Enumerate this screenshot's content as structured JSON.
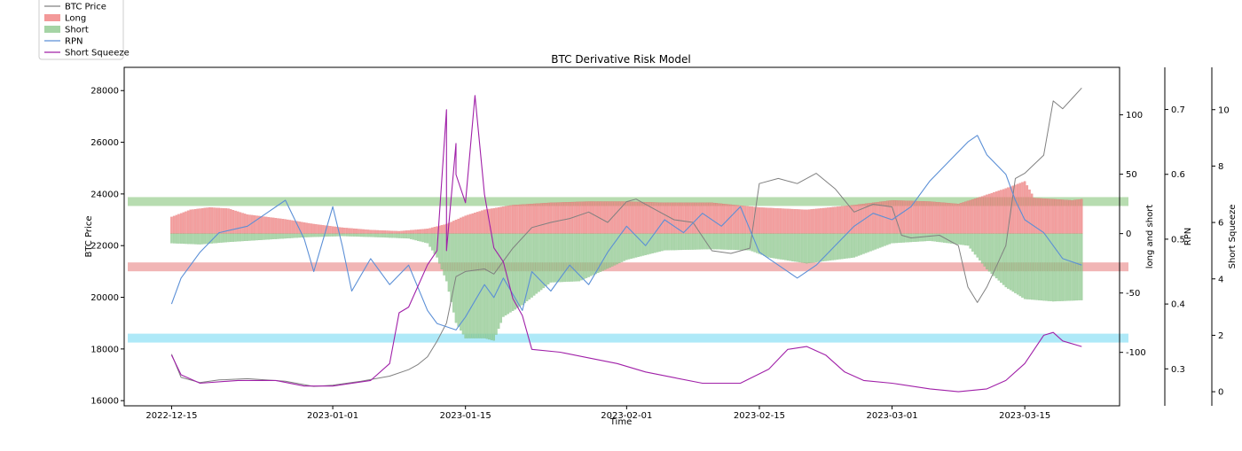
{
  "chart_data": {
    "type": "line",
    "title": "BTC Derivative Risk Model",
    "xlabel": "Time",
    "ylabel": "BTC Price",
    "x_ticks": [
      "2022-12-15",
      "2023-01-01",
      "2023-01-15",
      "2023-02-01",
      "2023-02-15",
      "2023-03-01",
      "2023-03-15"
    ],
    "x_range": [
      "2022-12-10",
      "2023-03-25"
    ],
    "legend": {
      "placement": "top-left, outside",
      "entries": [
        {
          "label": "BTC Price",
          "kind": "line",
          "color": "#808080"
        },
        {
          "label": "Long",
          "kind": "patch",
          "color": "#f08080"
        },
        {
          "label": "Short",
          "kind": "patch",
          "color": "#8fc98f"
        },
        {
          "label": "RPN",
          "kind": "line",
          "color": "#5b8fd6"
        },
        {
          "label": "Short Squeeze",
          "kind": "line",
          "color": "#a020a8"
        }
      ]
    },
    "axes": {
      "price": {
        "label": "BTC Price",
        "ylim": [
          15800,
          28900
        ],
        "ticks": [
          "16000",
          "18000",
          "20000",
          "22000",
          "24000",
          "26000",
          "28000"
        ]
      },
      "long_short": {
        "label": "long and short",
        "ylim": [
          -145,
          140
        ],
        "ticks": [
          "-100",
          "-50",
          "0",
          "50",
          "100"
        ]
      },
      "rpn": {
        "label": "RPN",
        "ylim": [
          0.243,
          0.765
        ],
        "ticks": [
          "0.3",
          "0.4",
          "0.5",
          "0.6",
          "0.7"
        ]
      },
      "squeeze": {
        "label": "Short Squeeze",
        "ylim": [
          -0.5,
          11.5
        ],
        "ticks": [
          "0",
          "2",
          "4",
          "6",
          "8",
          "10"
        ]
      }
    },
    "reference_bands": [
      {
        "axis": "long_short",
        "value": 27,
        "color": "#b7dcb0"
      },
      {
        "axis": "long_short",
        "value": -28,
        "color": "#f1b5b5"
      },
      {
        "axis": "squeeze",
        "value": 1.9,
        "color": "#aee9f8"
      }
    ],
    "series": [
      {
        "name": "BTC Price",
        "axis": "price",
        "points": [
          [
            "2022-12-15",
            17800
          ],
          [
            "2022-12-16",
            16900
          ],
          [
            "2022-12-18",
            16700
          ],
          [
            "2022-12-20",
            16800
          ],
          [
            "2022-12-23",
            16850
          ],
          [
            "2022-12-27",
            16750
          ],
          [
            "2022-12-30",
            16550
          ],
          [
            "2023-01-01",
            16600
          ],
          [
            "2023-01-04",
            16750
          ],
          [
            "2023-01-07",
            16950
          ],
          [
            "2023-01-09",
            17200
          ],
          [
            "2023-01-10",
            17400
          ],
          [
            "2023-01-11",
            17700
          ],
          [
            "2023-01-12",
            18300
          ],
          [
            "2023-01-13",
            19000
          ],
          [
            "2023-01-14",
            20800
          ],
          [
            "2023-01-15",
            21000
          ],
          [
            "2023-01-17",
            21100
          ],
          [
            "2023-01-18",
            20900
          ],
          [
            "2023-01-20",
            21900
          ],
          [
            "2023-01-22",
            22700
          ],
          [
            "2023-01-24",
            22900
          ],
          [
            "2023-01-26",
            23050
          ],
          [
            "2023-01-28",
            23300
          ],
          [
            "2023-01-30",
            22900
          ],
          [
            "2023-02-01",
            23700
          ],
          [
            "2023-02-02",
            23800
          ],
          [
            "2023-02-04",
            23400
          ],
          [
            "2023-02-06",
            23000
          ],
          [
            "2023-02-08",
            22900
          ],
          [
            "2023-02-10",
            21800
          ],
          [
            "2023-02-12",
            21700
          ],
          [
            "2023-02-14",
            21900
          ],
          [
            "2023-02-15",
            24400
          ],
          [
            "2023-02-17",
            24600
          ],
          [
            "2023-02-19",
            24400
          ],
          [
            "2023-02-21",
            24800
          ],
          [
            "2023-02-23",
            24200
          ],
          [
            "2023-02-25",
            23300
          ],
          [
            "2023-02-27",
            23600
          ],
          [
            "2023-03-01",
            23500
          ],
          [
            "2023-03-02",
            22400
          ],
          [
            "2023-03-03",
            22300
          ],
          [
            "2023-03-06",
            22400
          ],
          [
            "2023-03-08",
            22000
          ],
          [
            "2023-03-09",
            20400
          ],
          [
            "2023-03-10",
            19800
          ],
          [
            "2023-03-11",
            20400
          ],
          [
            "2023-03-13",
            22000
          ],
          [
            "2023-03-14",
            24600
          ],
          [
            "2023-03-15",
            24800
          ],
          [
            "2023-03-17",
            25500
          ],
          [
            "2023-03-18",
            27600
          ],
          [
            "2023-03-19",
            27300
          ],
          [
            "2023-03-20",
            27700
          ],
          [
            "2023-03-21",
            28100
          ]
        ]
      },
      {
        "name": "Long",
        "axis": "long_short",
        "kind": "bars",
        "points": [
          [
            "2022-12-15",
            14
          ],
          [
            "2022-12-17",
            20
          ],
          [
            "2022-12-19",
            22
          ],
          [
            "2022-12-21",
            21
          ],
          [
            "2022-12-23",
            16
          ],
          [
            "2022-12-27",
            12
          ],
          [
            "2022-12-30",
            8
          ],
          [
            "2023-01-02",
            5
          ],
          [
            "2023-01-05",
            3
          ],
          [
            "2023-01-08",
            2
          ],
          [
            "2023-01-11",
            4
          ],
          [
            "2023-01-13",
            8
          ],
          [
            "2023-01-15",
            15
          ],
          [
            "2023-01-17",
            20
          ],
          [
            "2023-01-20",
            24
          ],
          [
            "2023-01-24",
            26
          ],
          [
            "2023-01-28",
            27
          ],
          [
            "2023-02-01",
            27
          ],
          [
            "2023-02-05",
            26
          ],
          [
            "2023-02-10",
            26
          ],
          [
            "2023-02-15",
            22
          ],
          [
            "2023-02-20",
            20
          ],
          [
            "2023-02-25",
            24
          ],
          [
            "2023-03-01",
            28
          ],
          [
            "2023-03-05",
            27
          ],
          [
            "2023-03-08",
            25
          ],
          [
            "2023-03-10",
            30
          ],
          [
            "2023-03-13",
            38
          ],
          [
            "2023-03-15",
            44
          ],
          [
            "2023-03-16",
            30
          ],
          [
            "2023-03-20",
            28
          ],
          [
            "2023-03-21",
            29
          ]
        ]
      },
      {
        "name": "Short",
        "axis": "long_short",
        "kind": "bars",
        "points": [
          [
            "2022-12-15",
            -8
          ],
          [
            "2022-12-18",
            -9
          ],
          [
            "2022-12-21",
            -7
          ],
          [
            "2022-12-25",
            -5
          ],
          [
            "2022-12-29",
            -3
          ],
          [
            "2023-01-02",
            -2
          ],
          [
            "2023-01-06",
            -3
          ],
          [
            "2023-01-09",
            -4
          ],
          [
            "2023-01-11",
            -8
          ],
          [
            "2023-01-12",
            -20
          ],
          [
            "2023-01-13",
            -40
          ],
          [
            "2023-01-14",
            -75
          ],
          [
            "2023-01-15",
            -88
          ],
          [
            "2023-01-17",
            -88
          ],
          [
            "2023-01-18",
            -90
          ],
          [
            "2023-01-19",
            -70
          ],
          [
            "2023-01-21",
            -60
          ],
          [
            "2023-01-24",
            -41
          ],
          [
            "2023-01-27",
            -40
          ],
          [
            "2023-01-29",
            -33
          ],
          [
            "2023-02-01",
            -22
          ],
          [
            "2023-02-05",
            -14
          ],
          [
            "2023-02-10",
            -13
          ],
          [
            "2023-02-14",
            -14
          ],
          [
            "2023-02-16",
            -20
          ],
          [
            "2023-02-20",
            -25
          ],
          [
            "2023-02-25",
            -20
          ],
          [
            "2023-03-01",
            -8
          ],
          [
            "2023-03-05",
            -6
          ],
          [
            "2023-03-09",
            -10
          ],
          [
            "2023-03-11",
            -30
          ],
          [
            "2023-03-13",
            -45
          ],
          [
            "2023-03-15",
            -55
          ],
          [
            "2023-03-18",
            -57
          ],
          [
            "2023-03-21",
            -56
          ]
        ]
      },
      {
        "name": "RPN",
        "axis": "rpn",
        "points": [
          [
            "2022-12-15",
            0.4
          ],
          [
            "2022-12-16",
            0.44
          ],
          [
            "2022-12-18",
            0.48
          ],
          [
            "2022-12-20",
            0.51
          ],
          [
            "2022-12-23",
            0.52
          ],
          [
            "2022-12-25",
            0.54
          ],
          [
            "2022-12-27",
            0.56
          ],
          [
            "2022-12-29",
            0.5
          ],
          [
            "2022-12-30",
            0.45
          ],
          [
            "2023-01-01",
            0.55
          ],
          [
            "2023-01-02",
            0.49
          ],
          [
            "2023-01-03",
            0.42
          ],
          [
            "2023-01-05",
            0.47
          ],
          [
            "2023-01-07",
            0.43
          ],
          [
            "2023-01-09",
            0.46
          ],
          [
            "2023-01-11",
            0.39
          ],
          [
            "2023-01-12",
            0.37
          ],
          [
            "2023-01-14",
            0.36
          ],
          [
            "2023-01-15",
            0.38
          ],
          [
            "2023-01-17",
            0.43
          ],
          [
            "2023-01-18",
            0.41
          ],
          [
            "2023-01-19",
            0.44
          ],
          [
            "2023-01-21",
            0.39
          ],
          [
            "2023-01-22",
            0.45
          ],
          [
            "2023-01-24",
            0.42
          ],
          [
            "2023-01-26",
            0.46
          ],
          [
            "2023-01-28",
            0.43
          ],
          [
            "2023-01-30",
            0.48
          ],
          [
            "2023-02-01",
            0.52
          ],
          [
            "2023-02-03",
            0.49
          ],
          [
            "2023-02-05",
            0.53
          ],
          [
            "2023-02-07",
            0.51
          ],
          [
            "2023-02-09",
            0.54
          ],
          [
            "2023-02-11",
            0.52
          ],
          [
            "2023-02-13",
            0.55
          ],
          [
            "2023-02-15",
            0.48
          ],
          [
            "2023-02-17",
            0.46
          ],
          [
            "2023-02-19",
            0.44
          ],
          [
            "2023-02-21",
            0.46
          ],
          [
            "2023-02-23",
            0.49
          ],
          [
            "2023-02-25",
            0.52
          ],
          [
            "2023-02-27",
            0.54
          ],
          [
            "2023-03-01",
            0.53
          ],
          [
            "2023-03-03",
            0.55
          ],
          [
            "2023-03-05",
            0.59
          ],
          [
            "2023-03-07",
            0.62
          ],
          [
            "2023-03-09",
            0.65
          ],
          [
            "2023-03-10",
            0.66
          ],
          [
            "2023-03-11",
            0.63
          ],
          [
            "2023-03-13",
            0.6
          ],
          [
            "2023-03-14",
            0.56
          ],
          [
            "2023-03-15",
            0.53
          ],
          [
            "2023-03-17",
            0.51
          ],
          [
            "2023-03-19",
            0.47
          ],
          [
            "2023-03-21",
            0.46
          ]
        ]
      },
      {
        "name": "Short Squeeze",
        "axis": "squeeze",
        "points": [
          [
            "2022-12-15",
            1.3
          ],
          [
            "2022-12-16",
            0.6
          ],
          [
            "2022-12-18",
            0.3
          ],
          [
            "2022-12-22",
            0.4
          ],
          [
            "2022-12-26",
            0.4
          ],
          [
            "2022-12-29",
            0.2
          ],
          [
            "2023-01-01",
            0.2
          ],
          [
            "2023-01-05",
            0.4
          ],
          [
            "2023-01-07",
            1.0
          ],
          [
            "2023-01-08",
            2.8
          ],
          [
            "2023-01-09",
            3.0
          ],
          [
            "2023-01-11",
            4.5
          ],
          [
            "2023-01-12",
            5.0
          ],
          [
            "2023-01-13",
            10.0
          ],
          [
            "2023-01-13",
            5.0
          ],
          [
            "2023-01-14",
            8.8
          ],
          [
            "2023-01-14",
            7.7
          ],
          [
            "2023-01-15",
            6.7
          ],
          [
            "2023-01-16",
            10.5
          ],
          [
            "2023-01-17",
            7.0
          ],
          [
            "2023-01-18",
            5.1
          ],
          [
            "2023-01-19",
            4.6
          ],
          [
            "2023-01-20",
            3.3
          ],
          [
            "2023-01-21",
            2.7
          ],
          [
            "2023-01-22",
            1.5
          ],
          [
            "2023-01-25",
            1.4
          ],
          [
            "2023-01-28",
            1.2
          ],
          [
            "2023-01-31",
            1.0
          ],
          [
            "2023-02-03",
            0.7
          ],
          [
            "2023-02-06",
            0.5
          ],
          [
            "2023-02-09",
            0.3
          ],
          [
            "2023-02-13",
            0.3
          ],
          [
            "2023-02-16",
            0.8
          ],
          [
            "2023-02-18",
            1.5
          ],
          [
            "2023-02-20",
            1.6
          ],
          [
            "2023-02-22",
            1.3
          ],
          [
            "2023-02-24",
            0.7
          ],
          [
            "2023-02-26",
            0.4
          ],
          [
            "2023-03-01",
            0.3
          ],
          [
            "2023-03-05",
            0.1
          ],
          [
            "2023-03-08",
            0.0
          ],
          [
            "2023-03-11",
            0.1
          ],
          [
            "2023-03-13",
            0.4
          ],
          [
            "2023-03-15",
            1.0
          ],
          [
            "2023-03-17",
            2.0
          ],
          [
            "2023-03-18",
            2.1
          ],
          [
            "2023-03-19",
            1.8
          ],
          [
            "2023-03-21",
            1.6
          ]
        ]
      }
    ]
  }
}
